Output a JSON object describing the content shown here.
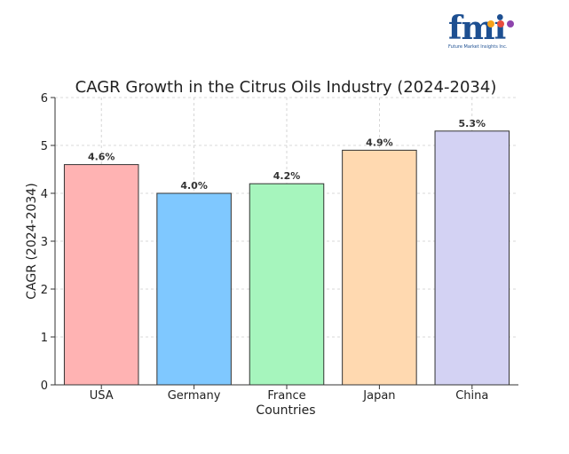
{
  "logo": {
    "mark": "fmi",
    "subtitle": "Future Market Insights Inc.",
    "dot_colors": [
      "#f7a21b",
      "#e84c3d",
      "#8e44ad"
    ]
  },
  "colors": {
    "bars": [
      "#ffb3b3",
      "#7fc8ff",
      "#a6f5bd",
      "#ffd9b0",
      "#d3d2f3"
    ],
    "bar_stroke": "#333333",
    "axis": "#333333",
    "grid": "#cccccc"
  },
  "chart_data": {
    "type": "bar",
    "title": "CAGR Growth in the Citrus Oils Industry (2024-2034)",
    "xlabel": "Countries",
    "ylabel": "CAGR (2024-2034)",
    "categories": [
      "USA",
      "Germany",
      "France",
      "Japan",
      "China"
    ],
    "values": [
      4.6,
      4.0,
      4.2,
      4.9,
      5.3
    ],
    "data_labels": [
      "4.6%",
      "4.0%",
      "4.2%",
      "4.9%",
      "5.3%"
    ],
    "ylim": [
      0,
      6
    ],
    "yticks": [
      0,
      1,
      2,
      3,
      4,
      5,
      6
    ],
    "grid": true
  }
}
